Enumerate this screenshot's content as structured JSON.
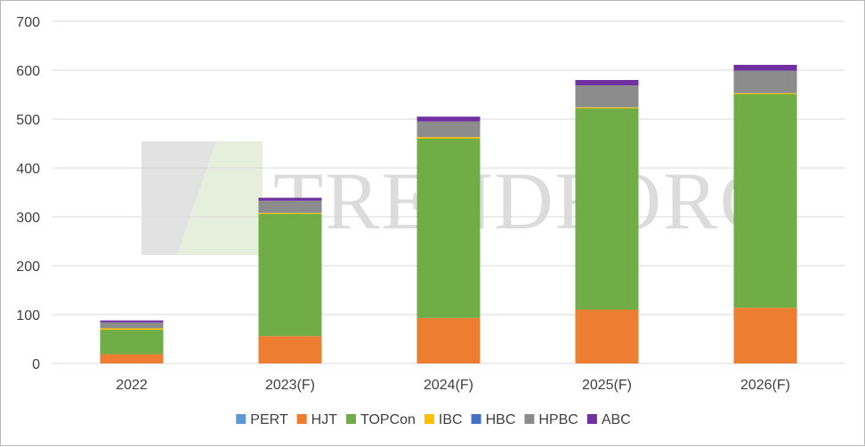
{
  "chart_data": {
    "type": "bar",
    "stacked": true,
    "categories": [
      "2022",
      "2023(F)",
      "2024(F)",
      "2025(F)",
      "2026(F)"
    ],
    "series": [
      {
        "name": "PERT",
        "color": "#5B9BD5",
        "values": [
          0,
          0,
          0,
          0,
          0
        ]
      },
      {
        "name": "HJT",
        "color": "#ED7D31",
        "values": [
          19,
          56,
          93,
          110,
          114
        ]
      },
      {
        "name": "TOPCon",
        "color": "#70AD47",
        "values": [
          50,
          250,
          367,
          412,
          437
        ]
      },
      {
        "name": "IBC",
        "color": "#FFC000",
        "values": [
          3,
          2,
          3,
          2,
          2
        ]
      },
      {
        "name": "HBC",
        "color": "#4472C4",
        "values": [
          0,
          0,
          0,
          0,
          0
        ]
      },
      {
        "name": "HPBC",
        "color": "#8C8C8C",
        "values": [
          12,
          25,
          32,
          45,
          46
        ]
      },
      {
        "name": "ABC",
        "color": "#7030A0",
        "values": [
          4,
          6,
          10,
          11,
          12
        ]
      }
    ],
    "title": "",
    "xlabel": "",
    "ylabel": "",
    "ylim": [
      0,
      700
    ],
    "yticks": [
      "0",
      "100",
      "200",
      "300",
      "400",
      "500",
      "600",
      "700"
    ],
    "grid": true,
    "legend_position": "bottom"
  },
  "watermark": {
    "text": "TRENDFORC"
  }
}
